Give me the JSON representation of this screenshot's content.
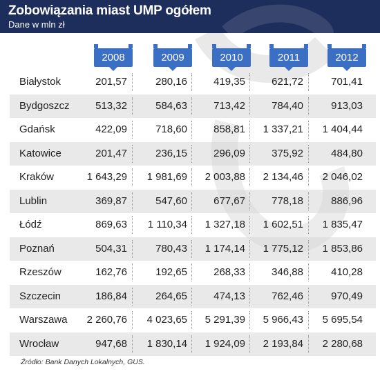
{
  "header": {
    "title": "Zobowiązania miast UMP ogółem",
    "subtitle": "Dane w mln zł"
  },
  "source": "Źródło: Bank Danych Lokalnych, GUS.",
  "colors": {
    "header_bg": "#1d2d5c",
    "year_tab": "#3b6fc4",
    "alt_row": "#d7d7d7"
  },
  "chart_data": {
    "type": "table",
    "title": "Zobowiązania miast UMP ogółem",
    "subtitle": "Dane w mln zł",
    "columns": [
      "2008",
      "2009",
      "2010",
      "2011",
      "2012"
    ],
    "rows": [
      {
        "city": "Białystok",
        "values": [
          "201,57",
          "280,16",
          "419,35",
          "621,72",
          "701,41"
        ]
      },
      {
        "city": "Bydgoszcz",
        "values": [
          "513,32",
          "584,63",
          "713,42",
          "784,40",
          "913,03"
        ]
      },
      {
        "city": "Gdańsk",
        "values": [
          "422,09",
          "718,60",
          "858,81",
          "1 337,21",
          "1 404,44"
        ]
      },
      {
        "city": "Katowice",
        "values": [
          "201,47",
          "236,15",
          "296,09",
          "375,92",
          "484,80"
        ]
      },
      {
        "city": "Kraków",
        "values": [
          "1 643,29",
          "1 981,69",
          "2 003,88",
          "2 134,46",
          "2 046,02"
        ]
      },
      {
        "city": "Lublin",
        "values": [
          "369,87",
          "547,60",
          "677,67",
          "778,18",
          "886,96"
        ]
      },
      {
        "city": "Łódź",
        "values": [
          "869,63",
          "1 110,34",
          "1 327,18",
          "1 602,51",
          "1 835,47"
        ]
      },
      {
        "city": "Poznań",
        "values": [
          "504,31",
          "780,43",
          "1 174,14",
          "1 775,12",
          "1 853,86"
        ]
      },
      {
        "city": "Rzeszów",
        "values": [
          "162,76",
          "192,65",
          "268,33",
          "346,88",
          "410,28"
        ]
      },
      {
        "city": "Szczecin",
        "values": [
          "186,84",
          "264,65",
          "474,13",
          "762,46",
          "970,49"
        ]
      },
      {
        "city": "Warszawa",
        "values": [
          "2 260,76",
          "4 023,65",
          "5 291,39",
          "5 966,43",
          "5 695,54"
        ]
      },
      {
        "city": "Wrocław",
        "values": [
          "947,68",
          "1 830,14",
          "1 924,09",
          "2 193,84",
          "2 280,68"
        ]
      }
    ]
  }
}
